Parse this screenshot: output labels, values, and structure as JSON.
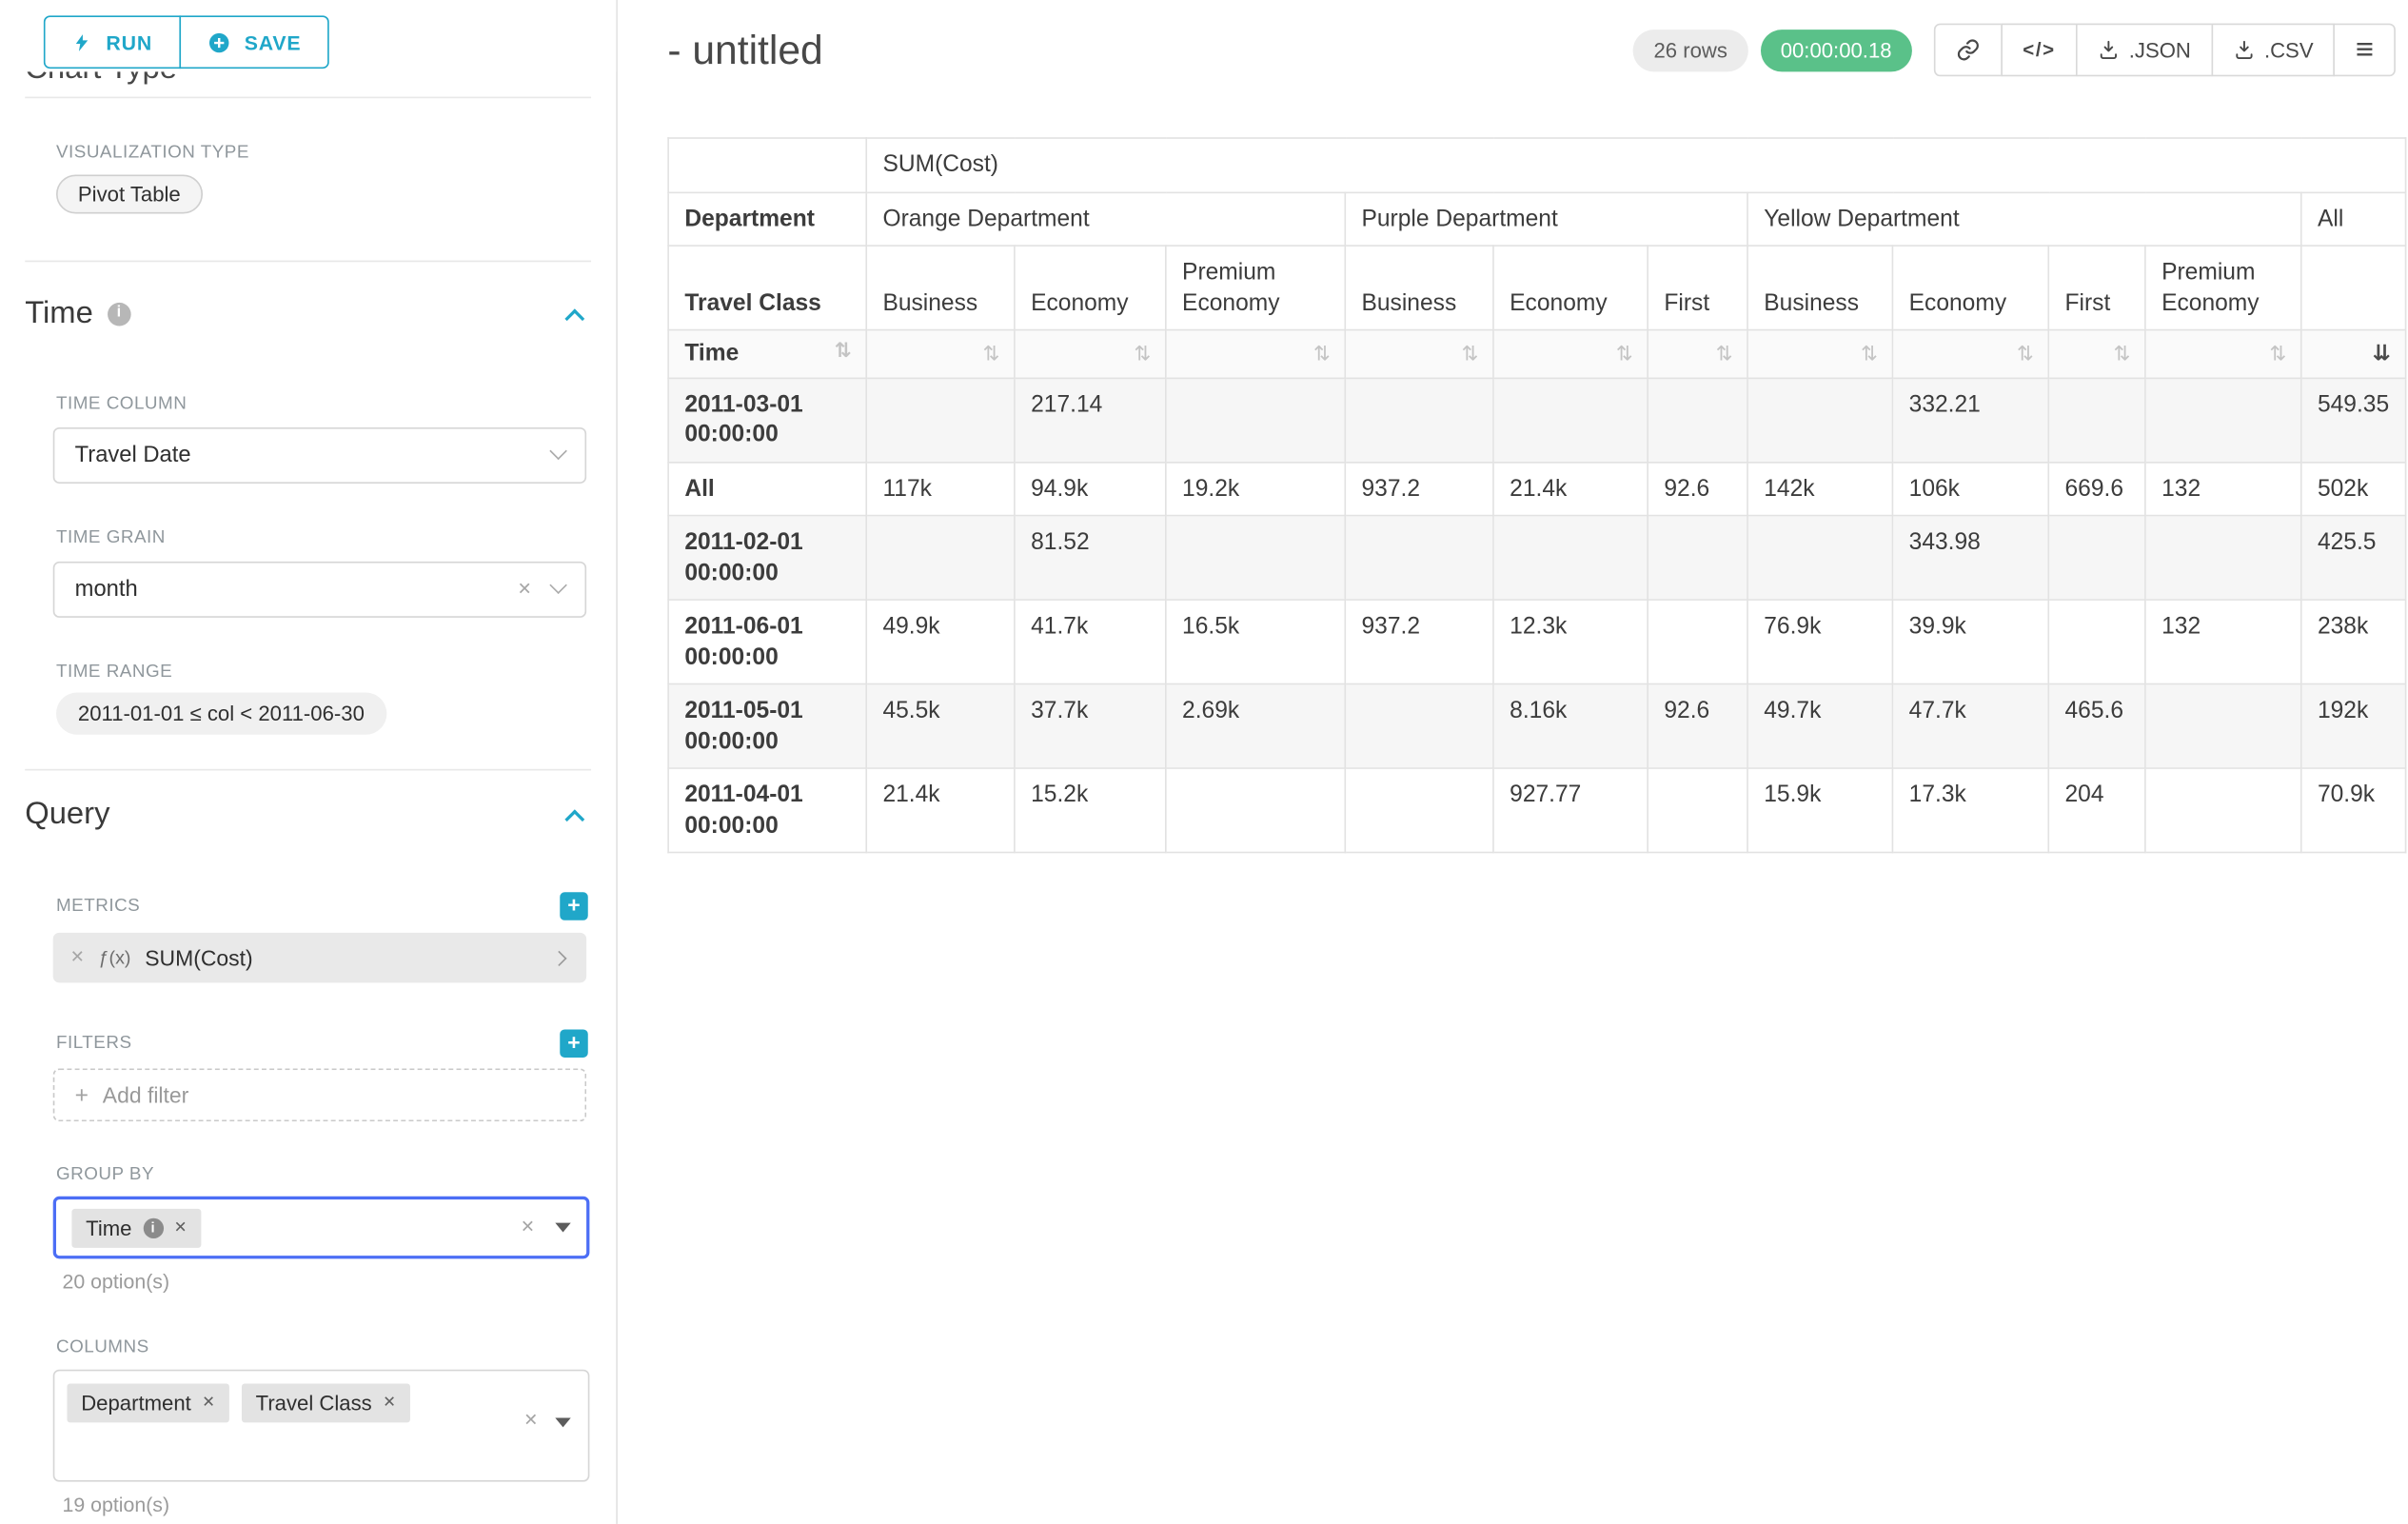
{
  "colors": {
    "accent": "#20a7c9",
    "success": "#5ac189",
    "focus_border": "#4c6ef5"
  },
  "sidebar": {
    "run_label": "RUN",
    "save_label": "SAVE",
    "chart_type_heading": "Chart Type",
    "visualization_type_label": "VISUALIZATION TYPE",
    "visualization_type_value": "Pivot Table",
    "time": {
      "title": "Time",
      "time_column_label": "TIME COLUMN",
      "time_column_value": "Travel Date",
      "time_grain_label": "TIME GRAIN",
      "time_grain_value": "month",
      "time_range_label": "TIME RANGE",
      "time_range_value": "2011-01-01 ≤ col < 2011-06-30"
    },
    "query": {
      "title": "Query",
      "metrics_label": "METRICS",
      "metric_prefix": "ƒ(x)",
      "metric_label": "SUM(Cost)",
      "filters_label": "FILTERS",
      "add_filter_label": "Add filter",
      "group_by_label": "GROUP BY",
      "group_by_tags": [
        "Time"
      ],
      "group_by_hint": "20 option(s)",
      "columns_label": "COLUMNS",
      "column_tags": [
        "Department",
        "Travel Class"
      ],
      "columns_hint": "19 option(s)"
    }
  },
  "header": {
    "title": "- untitled",
    "rows_badge": "26 rows",
    "timer": "00:00:00.18",
    "code_icon_text": "</>",
    "json_label": ".JSON",
    "csv_label": ".CSV"
  },
  "icons": {
    "sort_inactive": "⇅",
    "sort_active_desc": "⇊",
    "clear": "✕",
    "plus": "+",
    "hamburger": "≡"
  },
  "pivot_table": {
    "metric_header": "SUM(Cost)",
    "row_header": "Department",
    "col_header": "Travel Class",
    "time_header": "Time",
    "groups": [
      {
        "label": "Orange Department",
        "columns": [
          "Business",
          "Economy",
          "Premium Economy"
        ]
      },
      {
        "label": "Purple Department",
        "columns": [
          "Business",
          "Economy",
          "First"
        ]
      },
      {
        "label": "Yellow Department",
        "columns": [
          "Business",
          "Economy",
          "First",
          "Premium Economy"
        ]
      },
      {
        "label": "All",
        "columns": [
          ""
        ]
      }
    ],
    "sorted_column_index": 10,
    "rows": [
      {
        "label": "2011-03-01 00:00:00",
        "values": [
          "",
          "217.14",
          "",
          "",
          "",
          "",
          "",
          "332.21",
          "",
          "",
          "549.35"
        ]
      },
      {
        "label": "All",
        "values": [
          "117k",
          "94.9k",
          "19.2k",
          "937.2",
          "21.4k",
          "92.6",
          "142k",
          "106k",
          "669.6",
          "132",
          "502k"
        ]
      },
      {
        "label": "2011-02-01 00:00:00",
        "values": [
          "",
          "81.52",
          "",
          "",
          "",
          "",
          "",
          "343.98",
          "",
          "",
          "425.5"
        ]
      },
      {
        "label": "2011-06-01 00:00:00",
        "values": [
          "49.9k",
          "41.7k",
          "16.5k",
          "937.2",
          "12.3k",
          "",
          "76.9k",
          "39.9k",
          "",
          "132",
          "238k"
        ]
      },
      {
        "label": "2011-05-01 00:00:00",
        "values": [
          "45.5k",
          "37.7k",
          "2.69k",
          "",
          "8.16k",
          "92.6",
          "49.7k",
          "47.7k",
          "465.6",
          "",
          "192k"
        ]
      },
      {
        "label": "2011-04-01 00:00:00",
        "values": [
          "21.4k",
          "15.2k",
          "",
          "",
          "927.77",
          "",
          "15.9k",
          "17.3k",
          "204",
          "",
          "70.9k"
        ]
      }
    ]
  }
}
